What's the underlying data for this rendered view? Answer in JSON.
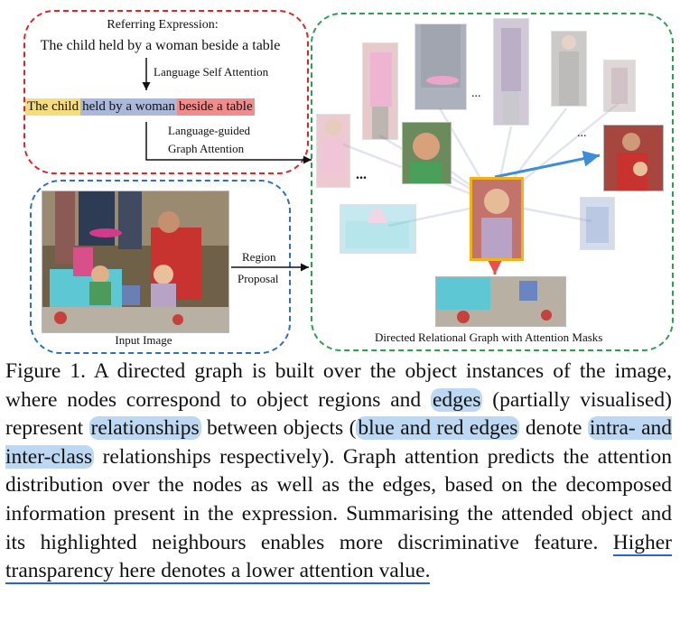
{
  "diagram": {
    "referring_expression_label": "Referring Expression:",
    "expression": "The child held by a woman beside a table",
    "language_self_attention": "Language Self Attention",
    "segments": [
      {
        "text": "The child",
        "color": "#f6dc7a"
      },
      {
        "text": "held by a woman",
        "color": "#a9b8db"
      },
      {
        "text": "beside a table",
        "color": "#f28b8b"
      }
    ],
    "language_guided_line1": "Language-guided",
    "language_guided_line2": "Graph Attention",
    "region_label": "Region",
    "proposal_label": "Proposal",
    "input_image_label": "Input Image",
    "graph_label": "Directed Relational Graph with Attention Masks",
    "ellipsis": "...",
    "colors": {
      "red_box": "#d9262b",
      "blue_box": "#2f6fbd",
      "green_box": "#2aa050",
      "target_border": "#f4b21a",
      "intra_edge": "#3d8ed6",
      "inter_edge": "#e9524b"
    }
  },
  "caption": {
    "figure_label": "Figure 1.",
    "p1": "A directed graph is built over the object instances of the image, where nodes correspond to object regions and",
    "hl_edges": "edges",
    "p2": "(partially visualised) represent",
    "hl_relationships": "relationships",
    "p3": "between objects (",
    "hl_blue_red": "blue and red edges",
    "p4": "denote",
    "hl_intra_inter": "intra- and inter-class",
    "p5": "relationships respectively). Graph attention predicts the attention distribution over the nodes as well as the edges, based on the decomposed information present in the expression. Summarising the attended object and its highlighted neighbours enables more discriminative feature.",
    "underlined": "Higher transparency here denotes a lower attention value."
  }
}
